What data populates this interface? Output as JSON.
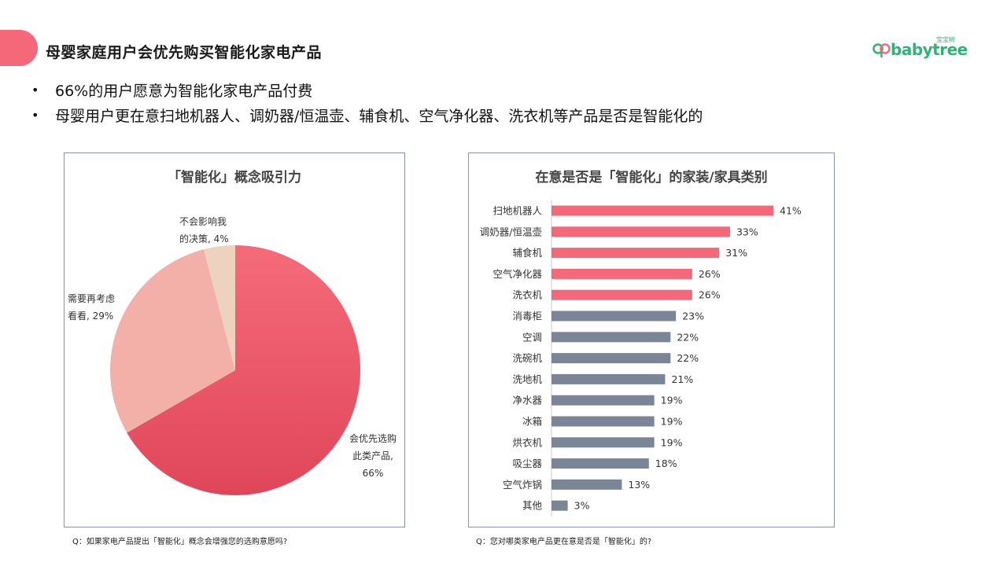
{
  "header": {
    "title": "母婴家庭用户会优先购买智能化家电产品",
    "logo_text": "babytree",
    "logo_cn": "宝宝树"
  },
  "bullets": [
    "66%的用户愿意为智能化家电产品付费",
    "母婴用户更在意扫地机器人、调奶器/恒温壶、辅食机、空气净化器、洗衣机等产品是否是智能化的"
  ],
  "colors": {
    "accent": "#f4687a",
    "bar_highlight": "#f4687a",
    "bar_normal": "#7a8597",
    "logo_green": "#2bb673"
  },
  "footnotes": {
    "left": "Q：如果家电产品提出「智能化」概念会增强您的选购意愿吗?",
    "right": "Q：您对哪类家电产品更在意是否是「智能化」的?"
  },
  "chart_data": [
    {
      "type": "pie",
      "title": "「智能化」概念吸引力",
      "slices": [
        {
          "label": "会优先选购此类产品",
          "value": 66,
          "display": [
            "会优先选购",
            "此类产品,",
            "66%"
          ],
          "color": "#f0606f"
        },
        {
          "label": "需要再考虑看看",
          "value": 29,
          "display": [
            "需要再考虑",
            "看看, 29%"
          ],
          "color": "#f2b0a8"
        },
        {
          "label": "不会影响我的决策",
          "value": 4,
          "display": [
            "不会影响我",
            "的决策, 4%"
          ],
          "color": "#ecd2bf"
        }
      ]
    },
    {
      "type": "bar",
      "orientation": "horizontal",
      "title": "在意是否是「智能化」的家装/家具类别",
      "categories": [
        "扫地机器人",
        "调奶器/恒温壶",
        "辅食机",
        "空气净化器",
        "洗衣机",
        "消毒柜",
        "空调",
        "洗碗机",
        "洗地机",
        "净水器",
        "冰箱",
        "烘衣机",
        "吸尘器",
        "空气炸锅",
        "其他"
      ],
      "values": [
        41,
        33,
        31,
        26,
        26,
        23,
        22,
        22,
        21,
        19,
        19,
        19,
        18,
        13,
        3
      ],
      "labels": [
        "41%",
        "33%",
        "31%",
        "26%",
        "26%",
        "23%",
        "22%",
        "22%",
        "21%",
        "19%",
        "19%",
        "19%",
        "18%",
        "13%",
        "3%"
      ],
      "highlight_count": 5,
      "unit": "%"
    }
  ]
}
